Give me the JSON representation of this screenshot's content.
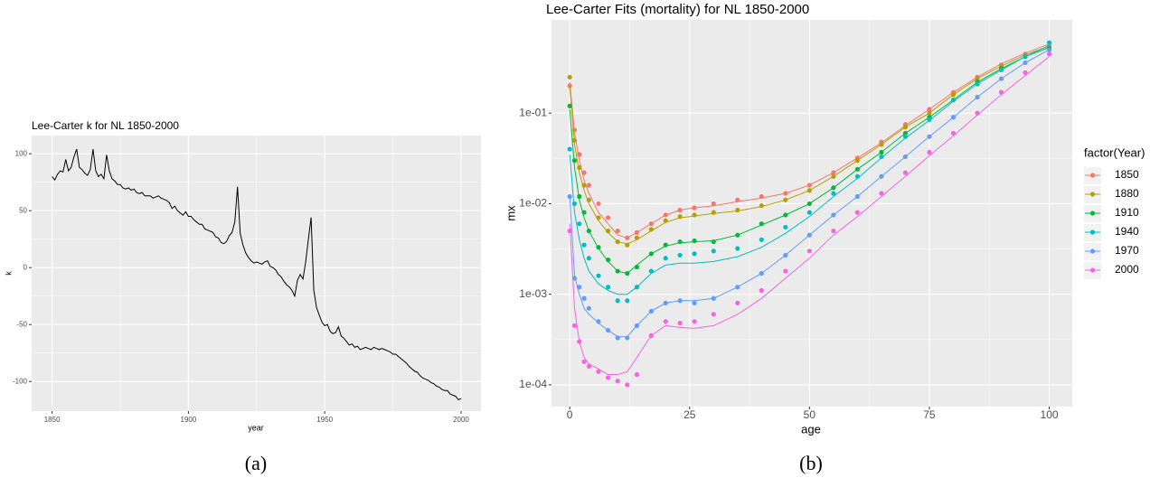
{
  "chart_data": [
    {
      "type": "line",
      "title": "Lee-Carter k for NL 1850-2000",
      "xlabel": "year",
      "ylabel": "k",
      "caption": "(a)",
      "color": "#000000",
      "grid": true,
      "xlim": [
        1842.5,
        2007.3
      ],
      "ylim": [
        -126,
        116
      ],
      "xticks": [
        1850,
        1900,
        1950,
        2000
      ],
      "yticks": [
        -100,
        -50,
        0,
        50,
        100
      ],
      "x": [
        1850,
        1851,
        1852,
        1853,
        1854,
        1855,
        1856,
        1857,
        1858,
        1859,
        1860,
        1861,
        1862,
        1863,
        1864,
        1865,
        1866,
        1867,
        1868,
        1869,
        1870,
        1871,
        1872,
        1873,
        1874,
        1875,
        1876,
        1877,
        1878,
        1879,
        1880,
        1881,
        1882,
        1883,
        1884,
        1885,
        1886,
        1887,
        1888,
        1889,
        1890,
        1891,
        1892,
        1893,
        1894,
        1895,
        1896,
        1897,
        1898,
        1899,
        1900,
        1901,
        1902,
        1903,
        1904,
        1905,
        1906,
        1907,
        1908,
        1909,
        1910,
        1911,
        1912,
        1913,
        1914,
        1915,
        1916,
        1917,
        1918,
        1919,
        1920,
        1921,
        1922,
        1923,
        1924,
        1925,
        1926,
        1927,
        1928,
        1929,
        1930,
        1931,
        1932,
        1933,
        1934,
        1935,
        1936,
        1937,
        1938,
        1939,
        1940,
        1941,
        1942,
        1943,
        1944,
        1945,
        1946,
        1947,
        1948,
        1949,
        1950,
        1951,
        1952,
        1953,
        1954,
        1955,
        1956,
        1957,
        1958,
        1959,
        1960,
        1961,
        1962,
        1963,
        1964,
        1965,
        1966,
        1967,
        1968,
        1969,
        1970,
        1971,
        1972,
        1973,
        1974,
        1975,
        1976,
        1977,
        1978,
        1979,
        1980,
        1981,
        1982,
        1983,
        1984,
        1985,
        1986,
        1987,
        1988,
        1989,
        1990,
        1991,
        1992,
        1993,
        1994,
        1995,
        1996,
        1997,
        1998,
        1999,
        2000
      ],
      "values": [
        80,
        77,
        82,
        85,
        84,
        95,
        85,
        88,
        97,
        104,
        88,
        86,
        83,
        81,
        86,
        104,
        85,
        80,
        82,
        78,
        99,
        85,
        78,
        76,
        73,
        73,
        70,
        69,
        70,
        68,
        69,
        66,
        65,
        66,
        63,
        63,
        63,
        61,
        62,
        63,
        61,
        60,
        59,
        57,
        52,
        54,
        50,
        48,
        46,
        49,
        45,
        45,
        42,
        40,
        38,
        38,
        34,
        33,
        32,
        31,
        27,
        26,
        22,
        21,
        23,
        28,
        31,
        40,
        71,
        30,
        20,
        13,
        9,
        6,
        4,
        5,
        4,
        3,
        5,
        6,
        1,
        0,
        -2,
        -6,
        -8,
        -12,
        -15,
        -17,
        -20,
        -25,
        -11,
        -6,
        -10,
        5,
        25,
        44,
        -20,
        -35,
        -42,
        -48,
        -51,
        -50,
        -56,
        -58,
        -57,
        -52,
        -60,
        -62,
        -65,
        -68,
        -67,
        -70,
        -69,
        -72,
        -71,
        -70,
        -71,
        -72,
        -70,
        -71,
        -72,
        -71,
        -72,
        -73,
        -74,
        -76,
        -76,
        -78,
        -80,
        -82,
        -84,
        -87,
        -89,
        -91,
        -92,
        -95,
        -97,
        -98,
        -99,
        -101,
        -102,
        -104,
        -105,
        -107,
        -108,
        -108,
        -111,
        -112,
        -113,
        -116,
        -115
      ]
    },
    {
      "type": "scatter",
      "title": "Lee-Carter Fits (mortality) for NL 1850-2000",
      "xlabel": "age",
      "ylabel": "mx",
      "legend_title": "factor(Year)",
      "caption": "(b)",
      "grid": true,
      "ylog": true,
      "xlim": [
        -3.8,
        104.8
      ],
      "ylim": [
        5.75e-05,
        1.07
      ],
      "xticks": [
        0,
        25,
        50,
        75,
        100
      ],
      "yticks": [
        {
          "value": 0.0001,
          "label": "1e-04"
        },
        {
          "value": 0.001,
          "label": "1e-03"
        },
        {
          "value": 0.01,
          "label": "1e-02"
        },
        {
          "value": 0.1,
          "label": "1e-01"
        }
      ],
      "x": [
        0,
        1,
        2,
        3,
        4,
        6,
        8,
        10,
        12,
        14,
        17,
        20,
        23,
        26,
        30,
        35,
        40,
        45,
        50,
        55,
        60,
        65,
        70,
        75,
        80,
        85,
        90,
        95,
        100
      ],
      "series": [
        {
          "name": "1850",
          "color": "#F8766D",
          "values": [
            0.2,
            0.065,
            0.035,
            0.022,
            0.016,
            0.01,
            0.007,
            0.005,
            0.0042,
            0.0048,
            0.006,
            0.0075,
            0.0085,
            0.009,
            0.01,
            0.011,
            0.012,
            0.013,
            0.016,
            0.022,
            0.032,
            0.048,
            0.075,
            0.11,
            0.17,
            0.25,
            0.34,
            0.45,
            0.55
          ],
          "fitted": [
            0.22,
            0.06,
            0.03,
            0.018,
            0.013,
            0.008,
            0.006,
            0.0045,
            0.0042,
            0.0048,
            0.006,
            0.0075,
            0.0085,
            0.009,
            0.0095,
            0.0105,
            0.0115,
            0.013,
            0.016,
            0.022,
            0.032,
            0.047,
            0.073,
            0.11,
            0.17,
            0.25,
            0.35,
            0.46,
            0.58
          ]
        },
        {
          "name": "1880",
          "color": "#B79F00",
          "values": [
            0.25,
            0.05,
            0.025,
            0.016,
            0.011,
            0.007,
            0.005,
            0.0038,
            0.0035,
            0.0042,
            0.0052,
            0.0065,
            0.0072,
            0.0075,
            0.008,
            0.0085,
            0.0095,
            0.011,
            0.014,
            0.02,
            0.03,
            0.045,
            0.07,
            0.1,
            0.16,
            0.24,
            0.33,
            0.43,
            0.52
          ],
          "fitted": [
            0.2,
            0.045,
            0.022,
            0.014,
            0.01,
            0.0065,
            0.0048,
            0.0038,
            0.0036,
            0.004,
            0.005,
            0.0062,
            0.007,
            0.0073,
            0.0078,
            0.0083,
            0.0093,
            0.011,
            0.014,
            0.02,
            0.03,
            0.045,
            0.07,
            0.1,
            0.16,
            0.24,
            0.33,
            0.44,
            0.55
          ]
        },
        {
          "name": "1910",
          "color": "#00BA38",
          "values": [
            0.12,
            0.03,
            0.012,
            0.008,
            0.005,
            0.0033,
            0.0024,
            0.0018,
            0.0017,
            0.002,
            0.0028,
            0.0035,
            0.0038,
            0.0039,
            0.0038,
            0.0045,
            0.006,
            0.0075,
            0.01,
            0.015,
            0.024,
            0.037,
            0.06,
            0.09,
            0.14,
            0.22,
            0.31,
            0.42,
            0.52
          ],
          "fitted": [
            0.11,
            0.025,
            0.011,
            0.007,
            0.005,
            0.0032,
            0.0023,
            0.0018,
            0.0017,
            0.0021,
            0.0028,
            0.0034,
            0.0037,
            0.0038,
            0.0039,
            0.0045,
            0.0058,
            0.0075,
            0.01,
            0.015,
            0.024,
            0.037,
            0.06,
            0.09,
            0.14,
            0.22,
            0.31,
            0.42,
            0.53
          ]
        },
        {
          "name": "1940",
          "color": "#00BFC4",
          "values": [
            0.04,
            0.01,
            0.006,
            0.0035,
            0.0025,
            0.0016,
            0.0012,
            0.00085,
            0.00085,
            0.0012,
            0.0018,
            0.0025,
            0.0027,
            0.0028,
            0.003,
            0.0032,
            0.004,
            0.0055,
            0.008,
            0.013,
            0.02,
            0.033,
            0.055,
            0.085,
            0.14,
            0.21,
            0.3,
            0.42,
            0.6
          ],
          "fitted": [
            0.035,
            0.008,
            0.004,
            0.0025,
            0.0018,
            0.0013,
            0.0011,
            0.001,
            0.001,
            0.0012,
            0.0017,
            0.0021,
            0.0022,
            0.0022,
            0.0023,
            0.0026,
            0.0033,
            0.0047,
            0.0072,
            0.012,
            0.019,
            0.032,
            0.053,
            0.083,
            0.135,
            0.21,
            0.3,
            0.42,
            0.56
          ]
        },
        {
          "name": "1970",
          "color": "#619CFF",
          "values": [
            0.012,
            0.0015,
            0.0012,
            0.0009,
            0.0007,
            0.0005,
            0.0004,
            0.00033,
            0.00033,
            0.00045,
            0.00065,
            0.0008,
            0.00085,
            0.0008,
            0.0009,
            0.0012,
            0.0017,
            0.0027,
            0.0045,
            0.0075,
            0.012,
            0.02,
            0.033,
            0.055,
            0.09,
            0.15,
            0.24,
            0.36,
            0.5
          ],
          "fitted": [
            0.012,
            0.0016,
            0.001,
            0.0007,
            0.0006,
            0.00048,
            0.0004,
            0.00034,
            0.00034,
            0.00045,
            0.00065,
            0.0008,
            0.00085,
            0.00085,
            0.0009,
            0.0012,
            0.0017,
            0.0027,
            0.0045,
            0.0075,
            0.012,
            0.02,
            0.033,
            0.055,
            0.09,
            0.15,
            0.24,
            0.36,
            0.5
          ]
        },
        {
          "name": "2000",
          "color": "#F564E3",
          "values": [
            0.005,
            0.00045,
            0.0003,
            0.00018,
            0.00016,
            0.00014,
            0.00012,
            0.00011,
            0.0001,
            0.00013,
            0.00035,
            0.0005,
            0.00048,
            0.0005,
            0.0006,
            0.0008,
            0.0011,
            0.0018,
            0.003,
            0.005,
            0.008,
            0.013,
            0.022,
            0.037,
            0.06,
            0.1,
            0.17,
            0.28,
            0.45
          ],
          "fitted": [
            0.006,
            0.0007,
            0.0003,
            0.0002,
            0.00017,
            0.00015,
            0.00013,
            0.00013,
            0.00014,
            0.0002,
            0.00035,
            0.00045,
            0.00043,
            0.00042,
            0.00045,
            0.0006,
            0.0009,
            0.0015,
            0.0025,
            0.0045,
            0.0072,
            0.012,
            0.02,
            0.034,
            0.056,
            0.095,
            0.16,
            0.26,
            0.42
          ]
        }
      ]
    }
  ]
}
